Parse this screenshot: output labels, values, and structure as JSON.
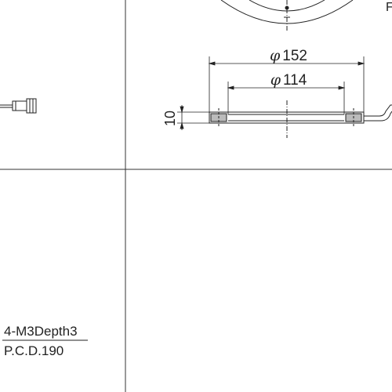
{
  "drawing": {
    "dimensions": {
      "outer_diameter": {
        "symbol": "φ",
        "value": "152"
      },
      "inner_diameter": {
        "symbol": "φ",
        "value": "114"
      },
      "thickness": {
        "value": "10"
      }
    },
    "callout": {
      "thread": "4-M3Depth3",
      "pcd": "P.C.D.190"
    },
    "edge_fragment": "F"
  }
}
